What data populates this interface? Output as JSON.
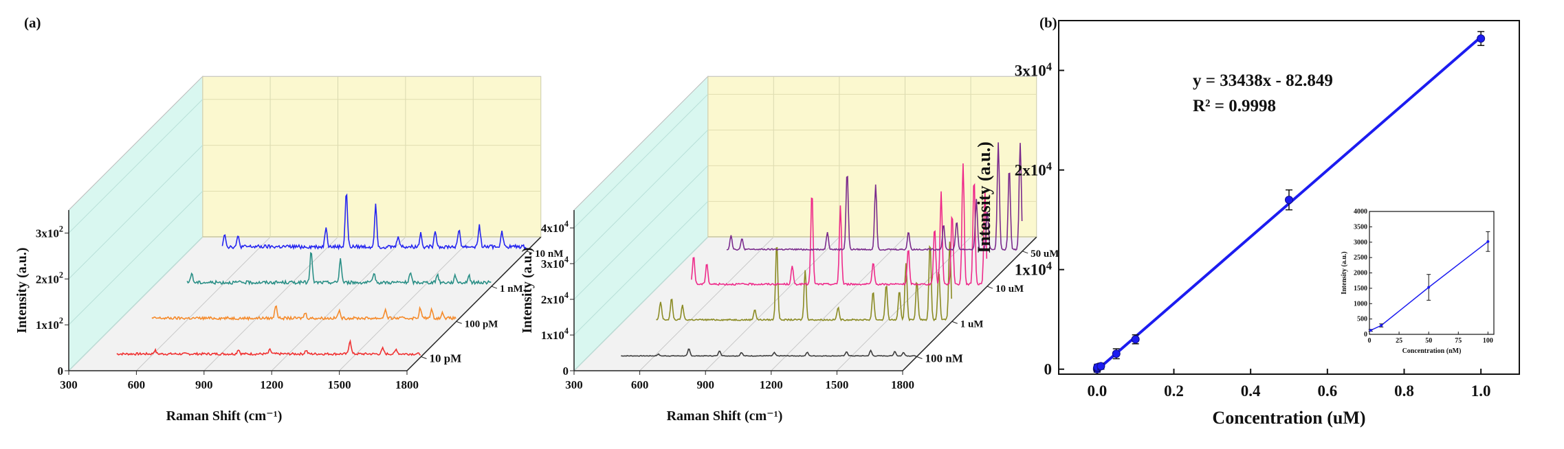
{
  "figure": {
    "panel_a_label": "(a)",
    "panel_b_label": "(b)"
  },
  "colors": {
    "back_wall": "#fbf8cf",
    "side_wall": "#d9f7f0",
    "floor": "#f2f2f2",
    "fit_line": "#1c1cf0",
    "point": "#1c1cf0"
  },
  "chart_data": [
    {
      "id": "a-left",
      "type": "line",
      "xlabel": "Raman Shift (cm⁻¹)",
      "ylabel": "Intensity (a.u.)",
      "xticks": [
        "300",
        "600",
        "900",
        "1200",
        "1500",
        "1800"
      ],
      "yticks": [
        "0",
        "1x10²",
        "2x10²",
        "3x10²"
      ],
      "ylim": [
        0,
        350
      ],
      "xlim": [
        300,
        1800
      ],
      "x_start": 450,
      "series": [
        {
          "name": "10 pM",
          "color": "#f03030",
          "peaks": [
            [
              620,
              8
            ],
            [
              990,
              10
            ],
            [
              1130,
              9
            ],
            [
              1290,
              8
            ],
            [
              1485,
              30
            ],
            [
              1630,
              12
            ],
            [
              1690,
              10
            ]
          ],
          "noise": 5
        },
        {
          "name": "100 pM",
          "color": "#f58a2a",
          "peaks": [
            [
              1000,
              30
            ],
            [
              1130,
              12
            ],
            [
              1280,
              16
            ],
            [
              1485,
              18
            ],
            [
              1640,
              22
            ],
            [
              1690,
              18
            ],
            [
              1740,
              12
            ]
          ],
          "noise": 6
        },
        {
          "name": "1 nM",
          "color": "#2a8f86",
          "peaks": [
            [
              470,
              20
            ],
            [
              1000,
              68
            ],
            [
              1130,
              52
            ],
            [
              1280,
              18
            ],
            [
              1440,
              20
            ],
            [
              1560,
              18
            ],
            [
              1640,
              15
            ],
            [
              1700,
              15
            ]
          ],
          "noise": 7
        },
        {
          "name": "10 nM",
          "color": "#2424f0",
          "peaks": [
            [
              460,
              30
            ],
            [
              520,
              22
            ],
            [
              910,
              45
            ],
            [
              1000,
              120
            ],
            [
              1130,
              90
            ],
            [
              1230,
              25
            ],
            [
              1330,
              30
            ],
            [
              1395,
              35
            ],
            [
              1500,
              38
            ],
            [
              1590,
              46
            ],
            [
              1690,
              35
            ]
          ],
          "noise": 8
        }
      ]
    },
    {
      "id": "a-right",
      "type": "line",
      "xlabel": "Raman Shift (cm⁻¹)",
      "ylabel": "Intensity (a.u.)",
      "xticks": [
        "300",
        "600",
        "900",
        "1200",
        "1500",
        "1800"
      ],
      "yticks": [
        "0",
        "1x10⁴",
        "2x10⁴",
        "3x10⁴",
        "4x10⁴"
      ],
      "ylim": [
        0,
        45000
      ],
      "xlim": [
        300,
        1800
      ],
      "x_start": 450,
      "series": [
        {
          "name": "100 nM",
          "color": "#3c3c3c",
          "peaks": [
            [
              620,
              500
            ],
            [
              760,
              2000
            ],
            [
              900,
              1500
            ],
            [
              1000,
              1000
            ],
            [
              1150,
              900
            ],
            [
              1300,
              1000
            ],
            [
              1480,
              1200
            ],
            [
              1590,
              1500
            ],
            [
              1700,
              1300
            ],
            [
              1740,
              1000
            ]
          ],
          "noise": 180
        },
        {
          "name": "1 uM",
          "color": "#8a8a22",
          "peaks": [
            [
              470,
              5000
            ],
            [
              520,
              6000
            ],
            [
              570,
              4000
            ],
            [
              900,
              3000
            ],
            [
              1000,
              22000
            ],
            [
              1130,
              14000
            ],
            [
              1280,
              3500
            ],
            [
              1440,
              8000
            ],
            [
              1500,
              10000
            ],
            [
              1560,
              8000
            ],
            [
              1590,
              16000
            ],
            [
              1640,
              11000
            ],
            [
              1700,
              22000
            ],
            [
              1740,
              14000
            ],
            [
              1790,
              22000
            ]
          ],
          "noise": 400
        },
        {
          "name": "10 uM",
          "color": "#ee2a8a",
          "peaks": [
            [
              460,
              8000
            ],
            [
              520,
              6000
            ],
            [
              910,
              5000
            ],
            [
              1000,
              26000
            ],
            [
              1130,
              22000
            ],
            [
              1280,
              6000
            ],
            [
              1440,
              10000
            ],
            [
              1560,
              16000
            ],
            [
              1590,
              26000
            ],
            [
              1640,
              20000
            ],
            [
              1690,
              34000
            ],
            [
              1740,
              30000
            ],
            [
              1790,
              26000
            ]
          ],
          "noise": 500
        },
        {
          "name": "50 uM",
          "color": "#7a2a8c",
          "peaks": [
            [
              470,
              4000
            ],
            [
              520,
              3000
            ],
            [
              910,
              5000
            ],
            [
              1000,
              22000
            ],
            [
              1130,
              18000
            ],
            [
              1280,
              5000
            ],
            [
              1440,
              7000
            ],
            [
              1500,
              8000
            ],
            [
              1590,
              14000
            ],
            [
              1640,
              11000
            ],
            [
              1690,
              30000
            ],
            [
              1740,
              23000
            ],
            [
              1790,
              30000
            ],
            [
              1830,
              20000
            ]
          ],
          "noise": 400
        }
      ]
    },
    {
      "id": "b-main",
      "type": "scatter",
      "xlabel": "Concentration (uM)",
      "ylabel": "Intensity (a.u.)",
      "xlim": [
        -0.1,
        1.1
      ],
      "ylim": [
        -500,
        35000
      ],
      "xticks": [
        "0.0",
        "0.2",
        "0.4",
        "0.6",
        "0.8",
        "1.0"
      ],
      "yticks": [
        "0",
        "1x10⁴",
        "2x10⁴",
        "3x10⁴"
      ],
      "points": [
        {
          "x": 1e-05,
          "y": 0,
          "err": 300
        },
        {
          "x": 0.0001,
          "y": 100,
          "err": 300
        },
        {
          "x": 0.001,
          "y": 200,
          "err": 300
        },
        {
          "x": 0.01,
          "y": 300,
          "err": 300
        },
        {
          "x": 0.05,
          "y": 1550,
          "err": 500
        },
        {
          "x": 0.1,
          "y": 3000,
          "err": 450
        },
        {
          "x": 0.5,
          "y": 17000,
          "err": 1000
        },
        {
          "x": 1.0,
          "y": 33200,
          "err": 700
        }
      ],
      "fit": {
        "slope": 33438,
        "intercept": -82.849
      },
      "equation": "y = 33438x - 82.849",
      "r2": "R² = 0.9998"
    },
    {
      "id": "b-inset",
      "type": "line",
      "xlabel": "Concentration (nM)",
      "ylabel": "Intensity (a.u.)",
      "xlim": [
        0,
        105
      ],
      "ylim": [
        0,
        4000
      ],
      "xticks": [
        "0",
        "25",
        "50",
        "75",
        "100"
      ],
      "yticks": [
        "0",
        "500",
        "1000",
        "1500",
        "2000",
        "2500",
        "3000",
        "3500",
        "4000"
      ],
      "points": [
        {
          "x": 1,
          "y": 130,
          "err": 30
        },
        {
          "x": 10,
          "y": 290,
          "err": 50
        },
        {
          "x": 50,
          "y": 1530,
          "err": 420
        },
        {
          "x": 100,
          "y": 3020,
          "err": 320
        }
      ]
    }
  ]
}
